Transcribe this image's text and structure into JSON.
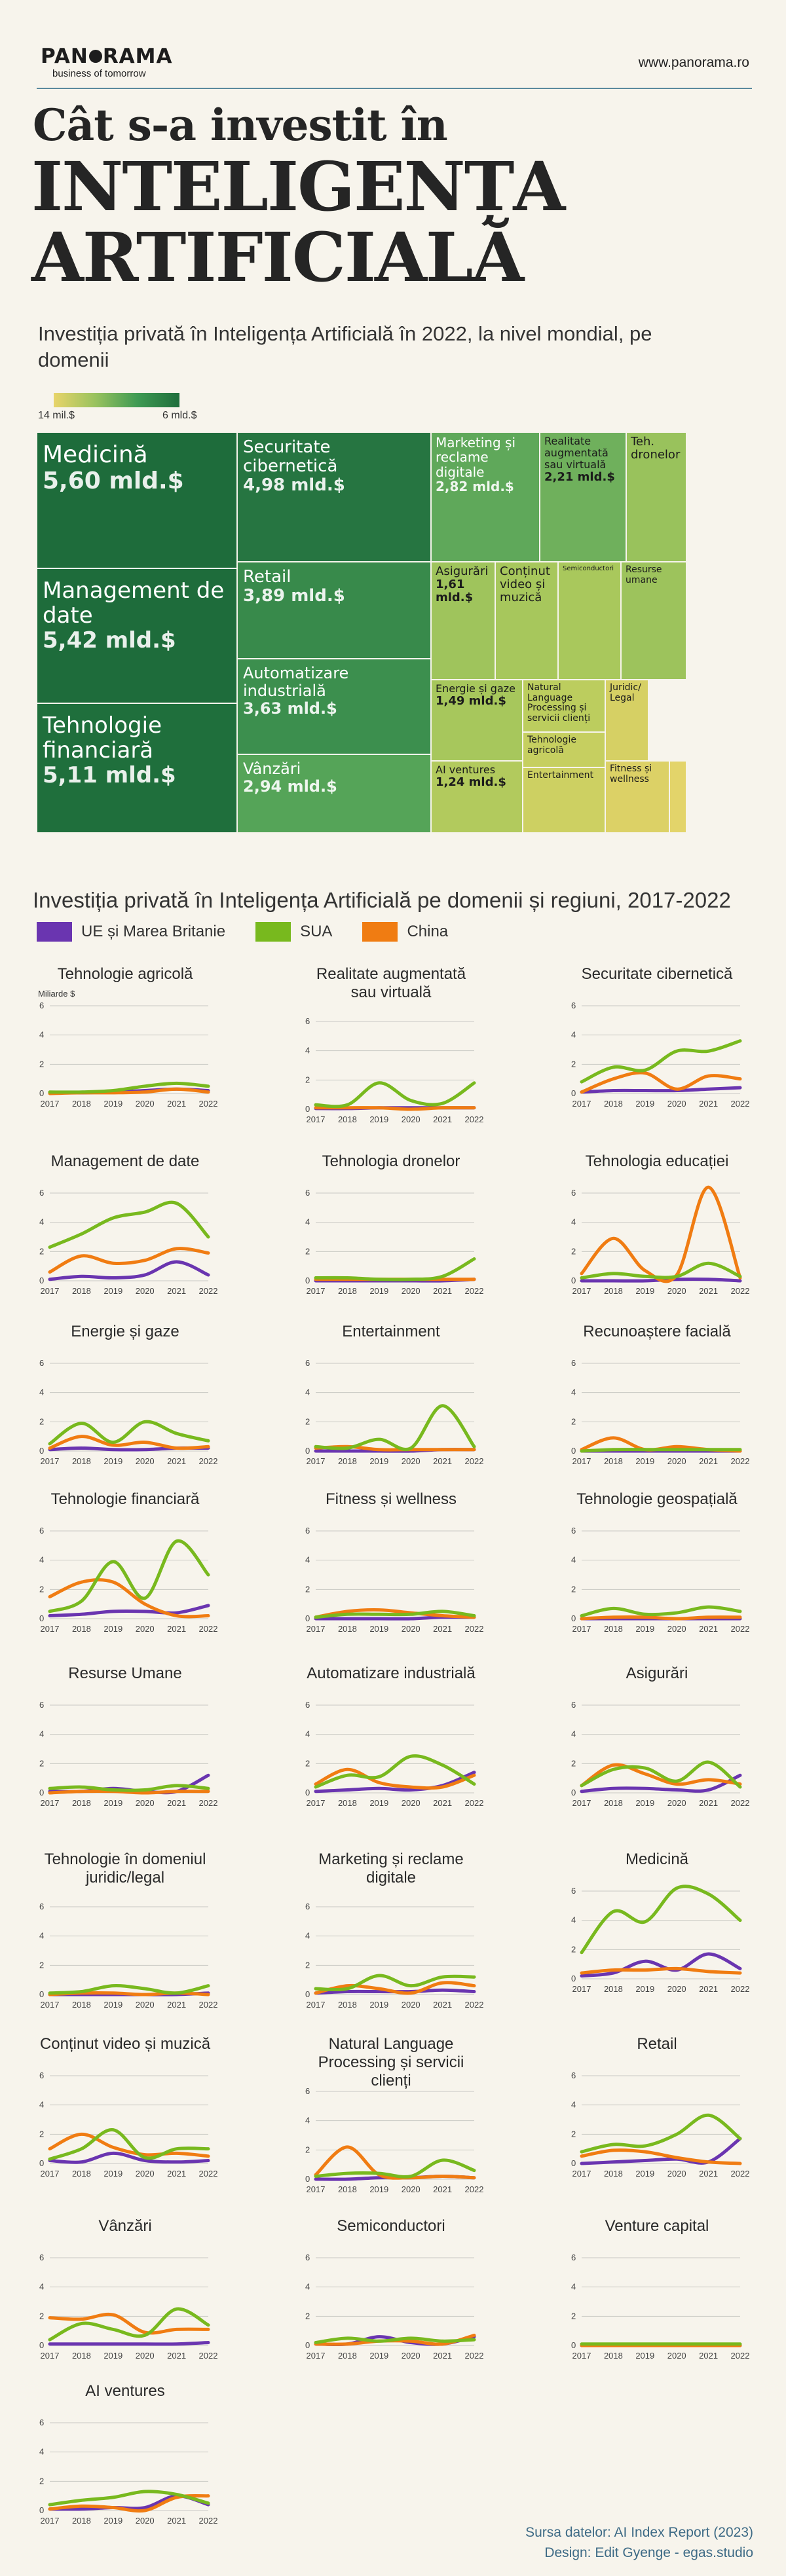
{
  "header": {
    "logo": "PANORAMA",
    "logo_subtitle": "business of tomorrow",
    "site": "www.panorama.ro"
  },
  "title": {
    "line1": "Cât s-a investit în",
    "line2": "INTELIGENȚA",
    "line3": "ARTIFICIALĂ"
  },
  "section1": {
    "subtitle": "Investiția privată în Inteligența Artificială în 2022, la nivel mondial, pe domenii",
    "legend_min": "14 mil.$",
    "legend_max": "6 mld.$"
  },
  "section2": {
    "subtitle": "Investiția privată în Inteligența Artificială pe domenii și regiuni, 2017-2022",
    "unit": "Miliarde $"
  },
  "colors": {
    "eu": "#6a35b0",
    "us": "#78b91e",
    "cn": "#f07c12",
    "bg": "#f7f4ec"
  },
  "chart_data": [
    {
      "type": "treemap",
      "title": "Investiția privată în Inteligența Artificială în 2022, la nivel mondial, pe domenii",
      "items": [
        {
          "name": "Medicină",
          "label": "5,60 mld.$",
          "value": 5.6
        },
        {
          "name": "Management de date",
          "label": "5,42 mld.$",
          "value": 5.42
        },
        {
          "name": "Tehnologie financiară",
          "label": "5,11 mld.$",
          "value": 5.11
        },
        {
          "name": "Securitate cibernetică",
          "label": "4,98 mld.$",
          "value": 4.98
        },
        {
          "name": "Retail",
          "label": "3,89 mld.$",
          "value": 3.89
        },
        {
          "name": "Automatizare industrială",
          "label": "3,63 mld.$",
          "value": 3.63
        },
        {
          "name": "Vânzări",
          "label": "2,94 mld.$",
          "value": 2.94
        },
        {
          "name": "Marketing și reclame digitale",
          "label": "2,82 mld.$",
          "value": 2.82
        },
        {
          "name": "Realitate augmentată sau virtuală",
          "label": "2,21 mld.$",
          "value": 2.21
        },
        {
          "name": "Teh. dronelor",
          "label": "",
          "value": 2.0
        },
        {
          "name": "Asigurări",
          "label": "1,61 mld.$",
          "value": 1.61
        },
        {
          "name": "Conținut video și muzică",
          "label": "",
          "value": 1.5
        },
        {
          "name": "Semiconductori",
          "label": "",
          "value": 1.4
        },
        {
          "name": "Resurse umane",
          "label": "",
          "value": 1.35
        },
        {
          "name": "Energie și gaze",
          "label": "1,49 mld.$",
          "value": 1.49
        },
        {
          "name": "Natural Language Processing și servicii clienți",
          "label": "",
          "value": 1.0
        },
        {
          "name": "Tehnologie agricolă",
          "label": "",
          "value": 0.6
        },
        {
          "name": "Juridic/ Legal",
          "label": "",
          "value": 0.7
        },
        {
          "name": "AI ventures",
          "label": "1,24 mld.$",
          "value": 1.24
        },
        {
          "name": "Entertainment",
          "label": "",
          "value": 0.9
        },
        {
          "name": "Fitness și wellness",
          "label": "",
          "value": 0.5
        }
      ]
    },
    {
      "type": "line",
      "x": [
        2017,
        2018,
        2019,
        2020,
        2021,
        2022
      ],
      "ylim": [
        0,
        6
      ],
      "yticks": [
        0,
        2,
        4,
        6
      ],
      "ylabel": "Miliarde $",
      "series_names": {
        "eu": "UE și Marea Britanie",
        "us": "SUA",
        "cn": "China"
      },
      "panels": [
        {
          "title": "Tehnologie agricolă",
          "eu": [
            0.05,
            0.05,
            0.1,
            0.2,
            0.3,
            0.2
          ],
          "us": [
            0.1,
            0.1,
            0.2,
            0.5,
            0.7,
            0.5
          ],
          "cn": [
            0.0,
            0.05,
            0.05,
            0.1,
            0.3,
            0.1
          ]
        },
        {
          "title": "Realitate augmentată sau virtuală",
          "eu": [
            0.05,
            0.05,
            0.1,
            0.1,
            0.1,
            0.1
          ],
          "us": [
            0.3,
            0.3,
            1.8,
            0.6,
            0.4,
            1.8
          ],
          "cn": [
            0.1,
            0.1,
            0.1,
            0.0,
            0.1,
            0.1
          ]
        },
        {
          "title": "Securitate cibernetică",
          "eu": [
            0.1,
            0.2,
            0.2,
            0.2,
            0.3,
            0.4
          ],
          "us": [
            0.8,
            1.8,
            1.6,
            2.9,
            2.9,
            3.6
          ],
          "cn": [
            0.1,
            1.0,
            1.4,
            0.3,
            1.2,
            1.0
          ]
        },
        {
          "title": "Management de date",
          "eu": [
            0.1,
            0.3,
            0.2,
            0.4,
            1.3,
            0.4
          ],
          "us": [
            2.3,
            3.2,
            4.3,
            4.7,
            5.3,
            3.0
          ],
          "cn": [
            0.6,
            1.7,
            1.2,
            1.4,
            2.2,
            1.9
          ]
        },
        {
          "title": "Tehnologia dronelor",
          "eu": [
            0.0,
            0.0,
            0.0,
            0.0,
            0.0,
            0.1
          ],
          "us": [
            0.2,
            0.2,
            0.1,
            0.1,
            0.3,
            1.5
          ],
          "cn": [
            0.1,
            0.1,
            0.1,
            0.1,
            0.1,
            0.1
          ]
        },
        {
          "title": "Tehnologia educației",
          "eu": [
            0.0,
            0.0,
            0.0,
            0.1,
            0.1,
            0.0
          ],
          "us": [
            0.2,
            0.5,
            0.3,
            0.3,
            1.2,
            0.3
          ],
          "cn": [
            0.5,
            2.9,
            0.7,
            0.4,
            6.4,
            0.2
          ]
        },
        {
          "title": "Energie și gaze",
          "eu": [
            0.1,
            0.2,
            0.1,
            0.1,
            0.2,
            0.2
          ],
          "us": [
            0.5,
            1.9,
            0.6,
            2.0,
            1.2,
            0.7
          ],
          "cn": [
            0.2,
            1.0,
            0.4,
            0.6,
            0.2,
            0.3
          ]
        },
        {
          "title": "Entertainment",
          "eu": [
            0.0,
            0.0,
            0.0,
            0.0,
            0.1,
            0.1
          ],
          "us": [
            0.3,
            0.2,
            0.8,
            0.2,
            3.1,
            0.3
          ],
          "cn": [
            0.2,
            0.3,
            0.1,
            0.1,
            0.1,
            0.1
          ]
        },
        {
          "title": "Recunoaștere facială",
          "eu": [
            0.0,
            0.0,
            0.0,
            0.0,
            0.0,
            0.0
          ],
          "us": [
            0.0,
            0.1,
            0.1,
            0.1,
            0.1,
            0.1
          ],
          "cn": [
            0.1,
            0.9,
            0.1,
            0.3,
            0.1,
            0.0
          ]
        },
        {
          "title": "Tehnologie financiară",
          "eu": [
            0.2,
            0.3,
            0.5,
            0.5,
            0.4,
            0.9
          ],
          "us": [
            0.5,
            1.2,
            3.9,
            1.4,
            5.3,
            3.0
          ],
          "cn": [
            1.5,
            2.5,
            2.5,
            1.0,
            0.2,
            0.2
          ]
        },
        {
          "title": "Fitness și wellness",
          "eu": [
            0.0,
            0.0,
            0.0,
            0.0,
            0.1,
            0.1
          ],
          "us": [
            0.1,
            0.3,
            0.3,
            0.3,
            0.5,
            0.2
          ],
          "cn": [
            0.1,
            0.5,
            0.6,
            0.4,
            0.2,
            0.1
          ]
        },
        {
          "title": "Tehnologie geospațială",
          "eu": [
            0.0,
            0.0,
            0.0,
            0.0,
            0.0,
            0.0
          ],
          "us": [
            0.2,
            0.7,
            0.3,
            0.4,
            0.8,
            0.5
          ],
          "cn": [
            0.0,
            0.1,
            0.1,
            0.0,
            0.1,
            0.1
          ]
        },
        {
          "title": "Resurse Umane",
          "eu": [
            0.1,
            0.1,
            0.3,
            0.1,
            0.1,
            1.2
          ],
          "us": [
            0.3,
            0.4,
            0.2,
            0.2,
            0.5,
            0.3
          ],
          "cn": [
            0.0,
            0.1,
            0.1,
            0.0,
            0.1,
            0.1
          ]
        },
        {
          "title": "Automatizare industrială",
          "eu": [
            0.1,
            0.2,
            0.3,
            0.2,
            0.5,
            1.4
          ],
          "us": [
            0.4,
            1.2,
            1.1,
            2.5,
            1.9,
            0.6
          ],
          "cn": [
            0.6,
            1.6,
            0.7,
            0.4,
            0.4,
            1.2
          ]
        },
        {
          "title": "Asigurări",
          "eu": [
            0.1,
            0.3,
            0.3,
            0.2,
            0.2,
            1.2
          ],
          "us": [
            0.5,
            1.6,
            1.7,
            0.8,
            2.1,
            0.4
          ],
          "cn": [
            0.5,
            1.9,
            1.3,
            0.6,
            0.9,
            0.6
          ]
        },
        {
          "title": "Tehnologie în domeniul juridic/legal",
          "eu": [
            0.0,
            0.0,
            0.0,
            0.0,
            0.0,
            0.1
          ],
          "us": [
            0.1,
            0.2,
            0.6,
            0.4,
            0.1,
            0.6
          ],
          "cn": [
            0.0,
            0.1,
            0.1,
            0.0,
            0.1,
            0.0
          ]
        },
        {
          "title": "Marketing și reclame digitale",
          "eu": [
            0.1,
            0.2,
            0.2,
            0.2,
            0.3,
            0.2
          ],
          "us": [
            0.4,
            0.4,
            1.3,
            0.6,
            1.2,
            1.2
          ],
          "cn": [
            0.1,
            0.6,
            0.4,
            0.1,
            0.8,
            0.6
          ]
        },
        {
          "title": "Medicină",
          "eu": [
            0.2,
            0.4,
            1.2,
            0.6,
            1.7,
            0.7
          ],
          "us": [
            1.8,
            4.6,
            3.9,
            6.2,
            5.8,
            4.0
          ],
          "cn": [
            0.4,
            0.6,
            0.6,
            0.7,
            0.5,
            0.4
          ]
        },
        {
          "title": "Conținut video și muzică",
          "eu": [
            0.2,
            0.1,
            0.7,
            0.2,
            0.1,
            0.2
          ],
          "us": [
            0.3,
            1.0,
            2.3,
            0.4,
            1.0,
            1.0
          ],
          "cn": [
            1.0,
            2.0,
            1.1,
            0.6,
            0.7,
            0.5
          ]
        },
        {
          "title": "Natural Language Processing și servicii clienți",
          "eu": [
            0.0,
            0.0,
            0.1,
            0.1,
            0.2,
            0.1
          ],
          "us": [
            0.2,
            0.4,
            0.4,
            0.2,
            1.3,
            0.6
          ],
          "cn": [
            0.3,
            2.2,
            0.3,
            0.1,
            0.2,
            0.1
          ]
        },
        {
          "title": "Retail",
          "eu": [
            0.0,
            0.1,
            0.2,
            0.3,
            0.1,
            1.7
          ],
          "us": [
            0.8,
            1.3,
            1.2,
            2.0,
            3.3,
            1.7
          ],
          "cn": [
            0.5,
            0.9,
            0.8,
            0.4,
            0.1,
            0.0
          ]
        },
        {
          "title": "Vânzări",
          "eu": [
            0.1,
            0.1,
            0.1,
            0.1,
            0.1,
            0.2
          ],
          "us": [
            0.4,
            1.5,
            1.1,
            0.7,
            2.5,
            1.4
          ],
          "cn": [
            1.9,
            1.8,
            2.1,
            0.9,
            1.1,
            1.1
          ]
        },
        {
          "title": "Semiconductori",
          "eu": [
            0.1,
            0.1,
            0.6,
            0.2,
            0.1,
            0.6
          ],
          "us": [
            0.2,
            0.5,
            0.3,
            0.5,
            0.3,
            0.4
          ],
          "cn": [
            0.1,
            0.1,
            0.3,
            0.3,
            0.1,
            0.7
          ]
        },
        {
          "title": "Venture capital",
          "eu": [
            0.0,
            0.0,
            0.0,
            0.0,
            0.0,
            0.0
          ],
          "us": [
            0.1,
            0.1,
            0.1,
            0.1,
            0.1,
            0.1
          ],
          "cn": [
            0.0,
            0.0,
            0.0,
            0.0,
            0.0,
            0.0
          ]
        },
        {
          "title": "AI ventures",
          "eu": [
            0.1,
            0.1,
            0.2,
            0.2,
            1.0,
            0.4
          ],
          "us": [
            0.4,
            0.7,
            0.9,
            1.3,
            1.1,
            0.5
          ],
          "cn": [
            0.1,
            0.3,
            0.2,
            0.0,
            0.9,
            1.0
          ]
        }
      ]
    }
  ],
  "source": {
    "line1": "Sursa datelor: AI Index Report (2023)",
    "line2": "Design: Edit Gyenge - egas.studio"
  }
}
